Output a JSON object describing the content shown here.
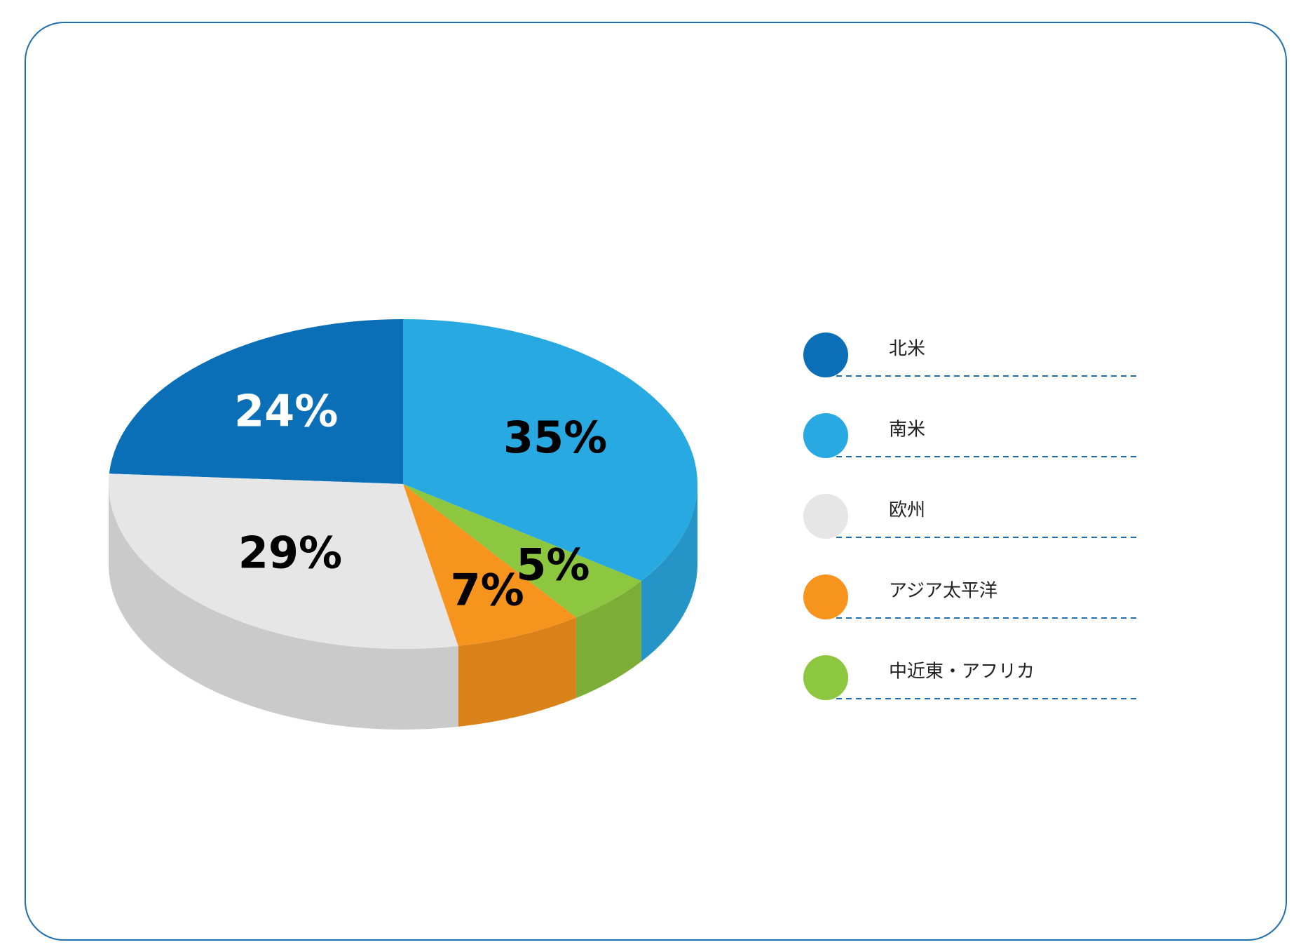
{
  "chart_data": {
    "type": "pie",
    "categories": [
      "北米",
      "南米",
      "欧州",
      "アジア太平洋",
      "中近東・アフリカ"
    ],
    "values": [
      24,
      35,
      29,
      7,
      5
    ],
    "value_labels": [
      "24%",
      "35%",
      "29%",
      "7%",
      "5%"
    ],
    "colors": [
      "#0a6fb7",
      "#29a9e1",
      "#e6e6e6",
      "#f7941d",
      "#8dc63f"
    ],
    "label_colors": [
      "#ffffff",
      "#000000",
      "#000000",
      "#000000",
      "#000000"
    ],
    "legend": "right"
  }
}
